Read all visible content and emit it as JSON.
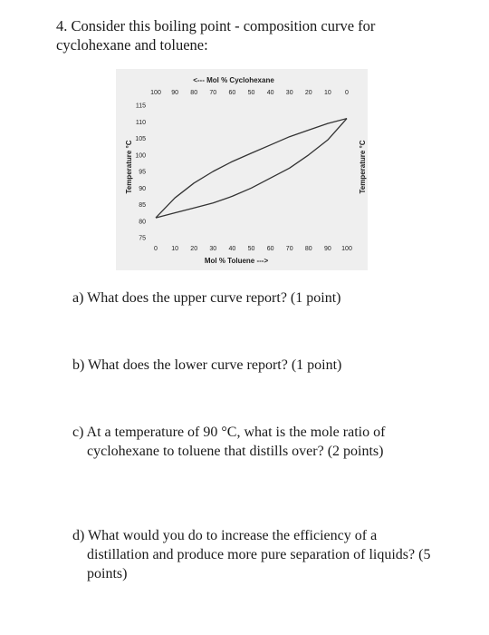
{
  "question": {
    "number_title": "4. Consider this boiling point - composition curve for",
    "title_line2": "cyclohexane and toluene:"
  },
  "chart_data": {
    "type": "line",
    "top_axis_label": "<--- Mol % Cyclohexane",
    "bottom_axis_label": "Mol % Toluene --->",
    "left_axis_label": "Temperature °C",
    "right_axis_label": "Temperature °C",
    "x_ticks_bottom": [
      "0",
      "10",
      "20",
      "30",
      "40",
      "50",
      "60",
      "70",
      "80",
      "90",
      "100"
    ],
    "x_ticks_top": [
      "100",
      "90",
      "80",
      "70",
      "60",
      "50",
      "40",
      "30",
      "20",
      "10",
      "0"
    ],
    "y_ticks": [
      "115",
      "110",
      "105",
      "100",
      "95",
      "90",
      "85",
      "80",
      "75"
    ],
    "xlim": [
      0,
      100
    ],
    "ylim": [
      75,
      115
    ],
    "grid": false,
    "series": [
      {
        "x": [
          0,
          10,
          20,
          30,
          40,
          50,
          60,
          70,
          80,
          90,
          100
        ],
        "y": [
          81,
          87,
          91.5,
          95,
          98,
          100.5,
          103,
          105.5,
          107.5,
          109.5,
          111
        ]
      },
      {
        "x": [
          0,
          10,
          20,
          30,
          40,
          50,
          60,
          70,
          80,
          90,
          100
        ],
        "y": [
          81,
          82.5,
          84,
          85.5,
          87.5,
          90,
          93,
          96,
          100,
          104.5,
          111
        ]
      }
    ]
  },
  "parts": {
    "a": "a) What does the upper curve report? (1 point)",
    "b": "b) What does the lower curve report? (1 point)",
    "c_line1": "c) At a temperature of 90 °C, what is the mole ratio of",
    "c_line2": "cyclohexane to toluene that distills over? (2 points)",
    "d_line1": "d) What would you do to increase the efficiency of a",
    "d_line2": "distillation and produce more pure separation of liquids? (5",
    "d_line3": "points)"
  }
}
